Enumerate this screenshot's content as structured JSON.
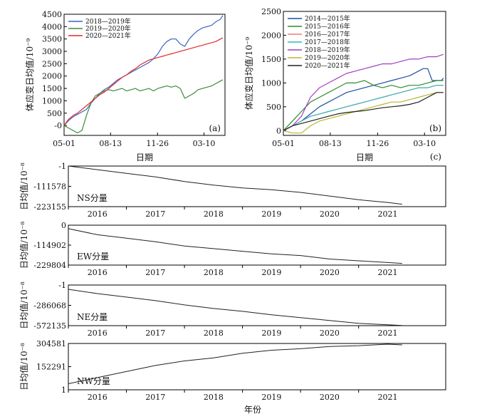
{
  "chart_data": [
    {
      "type": "line",
      "id": "a",
      "panel_label": "(a)",
      "ylabel": "体应变日均值/10⁻⁹",
      "xlabel": "日期",
      "xticks": [
        "05-01",
        "08-13",
        "11-26",
        "03-10"
      ],
      "xtick_days": [
        0,
        104,
        209,
        313
      ],
      "xlim": [
        0,
        360
      ],
      "ylim": [
        -400,
        4500
      ],
      "yticks": [
        0,
        500,
        1000,
        1500,
        2000,
        2500,
        3000,
        3500,
        4000,
        4500
      ],
      "ytick_labels": [
        "-0",
        "500",
        "1000",
        "1500",
        "2000",
        "2500",
        "3000",
        "3500",
        "4000",
        "4500"
      ],
      "series": [
        {
          "name": "2018—2019年",
          "color": "#3a62c0",
          "x": [
            0,
            10,
            20,
            30,
            40,
            50,
            60,
            70,
            80,
            90,
            100,
            110,
            120,
            130,
            140,
            150,
            160,
            170,
            180,
            190,
            200,
            210,
            220,
            230,
            240,
            250,
            260,
            270,
            280,
            290,
            300,
            310,
            320,
            330,
            340,
            350,
            355
          ],
          "y": [
            0,
            200,
            350,
            450,
            550,
            650,
            900,
            1100,
            1300,
            1450,
            1550,
            1700,
            1850,
            1950,
            2050,
            2150,
            2250,
            2350,
            2450,
            2550,
            2700,
            2900,
            3200,
            3400,
            3500,
            3500,
            3300,
            3200,
            3500,
            3700,
            3850,
            3950,
            4000,
            4050,
            4200,
            4300,
            4450
          ]
        },
        {
          "name": "2019—2020年",
          "color": "#3c8a3c",
          "x": [
            0,
            10,
            20,
            30,
            40,
            50,
            60,
            70,
            80,
            90,
            100,
            110,
            120,
            130,
            140,
            150,
            160,
            170,
            180,
            190,
            200,
            210,
            220,
            230,
            240,
            250,
            260,
            270,
            280,
            290,
            300,
            310,
            320,
            330,
            340,
            350,
            355
          ],
          "y": [
            0,
            -100,
            -200,
            -300,
            -200,
            400,
            900,
            1200,
            1300,
            1400,
            1450,
            1400,
            1450,
            1500,
            1400,
            1450,
            1500,
            1400,
            1450,
            1500,
            1400,
            1500,
            1550,
            1600,
            1550,
            1600,
            1500,
            1100,
            1200,
            1300,
            1450,
            1500,
            1550,
            1600,
            1700,
            1800,
            1850
          ]
        },
        {
          "name": "2020—2021年",
          "color": "#e02c2c",
          "x": [
            0,
            10,
            20,
            30,
            40,
            50,
            60,
            70,
            80,
            90,
            100,
            110,
            120,
            130,
            140,
            150,
            160,
            170,
            180,
            190,
            200,
            210,
            220,
            230,
            240,
            250,
            260,
            270,
            280,
            290,
            300,
            310,
            320,
            330,
            340,
            350,
            355
          ],
          "y": [
            0,
            250,
            400,
            500,
            650,
            800,
            950,
            1100,
            1250,
            1350,
            1500,
            1650,
            1800,
            1950,
            2050,
            2200,
            2300,
            2450,
            2550,
            2650,
            2700,
            2750,
            2800,
            2850,
            2900,
            2950,
            3000,
            3050,
            3100,
            3150,
            3200,
            3250,
            3300,
            3350,
            3400,
            3500,
            3550
          ]
        }
      ]
    },
    {
      "type": "line",
      "id": "b",
      "panel_label": "(b)",
      "ylabel": "体应变日均值/10⁻⁹",
      "xlabel": "日期",
      "xticks": [
        "05-01",
        "08-13",
        "11-26",
        "03-10"
      ],
      "xtick_days": [
        0,
        104,
        209,
        313
      ],
      "xlim": [
        0,
        360
      ],
      "ylim": [
        -100,
        2500
      ],
      "yticks": [
        0,
        500,
        1000,
        1500,
        2000,
        2500
      ],
      "ytick_labels": [
        "0",
        "500",
        "1000",
        "1500",
        "2000",
        "2500"
      ],
      "series": [
        {
          "name": "2014—2015年",
          "color": "#1f4ea3",
          "x": [
            0,
            20,
            40,
            60,
            80,
            100,
            120,
            140,
            160,
            180,
            200,
            220,
            240,
            260,
            280,
            300,
            310,
            320,
            330,
            340,
            350,
            355
          ],
          "y": [
            0,
            100,
            200,
            350,
            500,
            600,
            700,
            800,
            850,
            900,
            950,
            1000,
            1050,
            1100,
            1150,
            1250,
            1300,
            1300,
            1050,
            1050,
            1050,
            1100
          ]
        },
        {
          "name": "2015—2016年",
          "color": "#2e8a2e",
          "x": [
            0,
            20,
            40,
            60,
            80,
            100,
            120,
            140,
            160,
            180,
            200,
            220,
            240,
            260,
            280,
            300,
            320,
            340,
            355
          ],
          "y": [
            0,
            200,
            400,
            600,
            700,
            800,
            900,
            1000,
            1000,
            1050,
            950,
            900,
            950,
            900,
            950,
            950,
            1000,
            1050,
            1050
          ]
        },
        {
          "name": "2016—2017年",
          "color": "#f07a7a",
          "x": [
            0,
            20,
            40,
            60,
            80,
            100,
            120,
            140,
            160,
            180,
            200,
            220,
            240,
            260,
            280,
            300,
            320,
            340,
            355
          ],
          "y": [
            0,
            100,
            200,
            300,
            350,
            400,
            450,
            500,
            550,
            600,
            650,
            700,
            750,
            800,
            850,
            900,
            900,
            950,
            950
          ]
        },
        {
          "name": "2017—2018年",
          "color": "#36b8b8",
          "x": [
            0,
            20,
            40,
            60,
            80,
            100,
            120,
            140,
            160,
            180,
            200,
            220,
            240,
            260,
            280,
            300,
            320,
            340,
            355
          ],
          "y": [
            0,
            100,
            200,
            300,
            350,
            400,
            450,
            500,
            550,
            600,
            650,
            700,
            750,
            800,
            850,
            900,
            900,
            950,
            950
          ]
        },
        {
          "name": "2018—2019年",
          "color": "#a23fc0",
          "x": [
            0,
            20,
            40,
            60,
            80,
            100,
            120,
            140,
            160,
            180,
            200,
            220,
            240,
            260,
            280,
            300,
            320,
            340,
            355
          ],
          "y": [
            0,
            100,
            300,
            700,
            900,
            1000,
            1100,
            1200,
            1250,
            1300,
            1350,
            1400,
            1400,
            1450,
            1500,
            1500,
            1550,
            1550,
            1600
          ]
        },
        {
          "name": "2019—2020年",
          "color": "#b7b733",
          "x": [
            0,
            20,
            40,
            60,
            80,
            100,
            120,
            140,
            160,
            180,
            200,
            220,
            240,
            260,
            280,
            300,
            320,
            340,
            355
          ],
          "y": [
            0,
            -50,
            -50,
            100,
            200,
            250,
            300,
            350,
            400,
            450,
            500,
            550,
            600,
            600,
            650,
            700,
            750,
            800,
            800
          ]
        },
        {
          "name": "2020—2021年",
          "color": "#222222",
          "x": [
            0,
            20,
            40,
            60,
            80,
            100,
            120,
            140,
            160,
            180,
            200,
            220,
            240,
            260,
            280,
            300,
            320,
            340,
            355
          ],
          "y": [
            0,
            100,
            150,
            200,
            250,
            300,
            350,
            380,
            400,
            420,
            450,
            480,
            500,
            520,
            550,
            600,
            700,
            800,
            800
          ]
        }
      ]
    },
    {
      "type": "line",
      "id": "NS",
      "panel_label": "(c)",
      "label": "NS分量",
      "ylabel": "日均值/10⁻⁸",
      "ylim": [
        -223155,
        -1
      ],
      "ytick_labels": [
        "-1",
        "-111578",
        "-223155"
      ],
      "yticks": [
        -1,
        -111578,
        -223155
      ],
      "years": [
        "2016",
        "2017",
        "2018",
        "2019",
        "2020",
        "2021"
      ],
      "xlim": [
        2015.5,
        2022.0
      ],
      "x": [
        2015.5,
        2016.0,
        2016.5,
        2017.0,
        2017.5,
        2018.0,
        2018.5,
        2019.0,
        2019.5,
        2020.0,
        2020.5,
        2021.0,
        2021.25
      ],
      "y": [
        -1,
        -20000,
        -40000,
        -60000,
        -85000,
        -105000,
        -120000,
        -130000,
        -145000,
        -165000,
        -185000,
        -200000,
        -210000
      ]
    },
    {
      "type": "line",
      "id": "EW",
      "label": "EW分量",
      "ylabel": "日均值/10⁻⁸",
      "ylim": [
        -229804,
        0
      ],
      "ytick_labels": [
        "0",
        "-114902",
        "-229804"
      ],
      "yticks": [
        0,
        -114902,
        -229804
      ],
      "years": [
        "2016",
        "2017",
        "2018",
        "2019",
        "2020",
        "2021"
      ],
      "xlim": [
        2015.5,
        2022.0
      ],
      "x": [
        2015.5,
        2016.0,
        2016.5,
        2017.0,
        2017.5,
        2018.0,
        2018.5,
        2019.0,
        2019.5,
        2020.0,
        2020.5,
        2021.0,
        2021.25
      ],
      "y": [
        -20000,
        -55000,
        -75000,
        -95000,
        -120000,
        -135000,
        -150000,
        -165000,
        -175000,
        -195000,
        -205000,
        -215000,
        -220000
      ]
    },
    {
      "type": "line",
      "id": "NE",
      "label": "NE分量",
      "ylabel": "日均值/10⁻⁸",
      "ylim": [
        -572135,
        -1
      ],
      "ytick_labels": [
        "-1",
        "-286068",
        "-572135"
      ],
      "yticks": [
        -1,
        -286068,
        -572135
      ],
      "years": [
        "2016",
        "2017",
        "2018",
        "2019",
        "2020",
        "2021"
      ],
      "xlim": [
        2015.5,
        2022.0
      ],
      "x": [
        2015.5,
        2016.0,
        2016.5,
        2017.0,
        2017.5,
        2018.0,
        2018.5,
        2019.0,
        2019.5,
        2020.0,
        2020.5,
        2021.0,
        2021.25
      ],
      "y": [
        -60000,
        -120000,
        -170000,
        -220000,
        -280000,
        -330000,
        -370000,
        -420000,
        -460000,
        -500000,
        -540000,
        -560000,
        -570000
      ]
    },
    {
      "type": "line",
      "id": "NW",
      "label": "NW分量",
      "ylabel": "日均值/10⁻⁸",
      "xlabel": "年份",
      "ylim": [
        1,
        304581
      ],
      "ytick_labels": [
        "304581",
        "152291",
        "1"
      ],
      "yticks": [
        304581,
        152291,
        1
      ],
      "years": [
        "2016",
        "2017",
        "2018",
        "2019",
        "2020",
        "2021"
      ],
      "xlim": [
        2015.5,
        2022.0
      ],
      "x": [
        2015.5,
        2016.0,
        2016.5,
        2017.0,
        2017.5,
        2018.0,
        2018.5,
        2019.0,
        2019.5,
        2020.0,
        2020.5,
        2021.0,
        2021.25
      ],
      "y": [
        40000,
        80000,
        120000,
        160000,
        190000,
        210000,
        240000,
        260000,
        270000,
        285000,
        290000,
        300000,
        295000
      ]
    }
  ]
}
